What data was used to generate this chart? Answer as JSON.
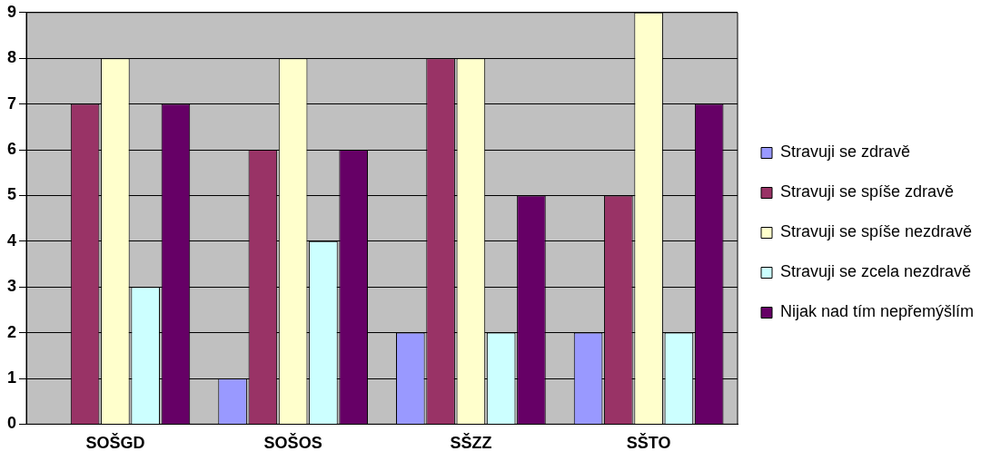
{
  "chart_data": {
    "type": "bar",
    "categories": [
      "SOŠGD",
      "SOŠOS",
      "SŠZZ",
      "SŠTO"
    ],
    "series": [
      {
        "name": "Stravuji se zdravě",
        "color": "#9999ff",
        "values": [
          0,
          1,
          2,
          2
        ]
      },
      {
        "name": "Stravuji se spíše zdravě",
        "color": "#993366",
        "values": [
          7,
          6,
          8,
          5
        ]
      },
      {
        "name": "Stravuji se spíše nezdravě",
        "color": "#ffffcc",
        "values": [
          8,
          8,
          8,
          9
        ]
      },
      {
        "name": "Stravuji se zcela nezdravě",
        "color": "#ccffff",
        "values": [
          3,
          4,
          2,
          2
        ]
      },
      {
        "name": "Nijak nad tím nepřemýšlím",
        "color": "#660066",
        "values": [
          7,
          6,
          5,
          7
        ]
      }
    ],
    "ylim": [
      0,
      9
    ],
    "yticks": [
      0,
      1,
      2,
      3,
      4,
      5,
      6,
      7,
      8,
      9
    ],
    "grid": "y",
    "legend": "right"
  }
}
